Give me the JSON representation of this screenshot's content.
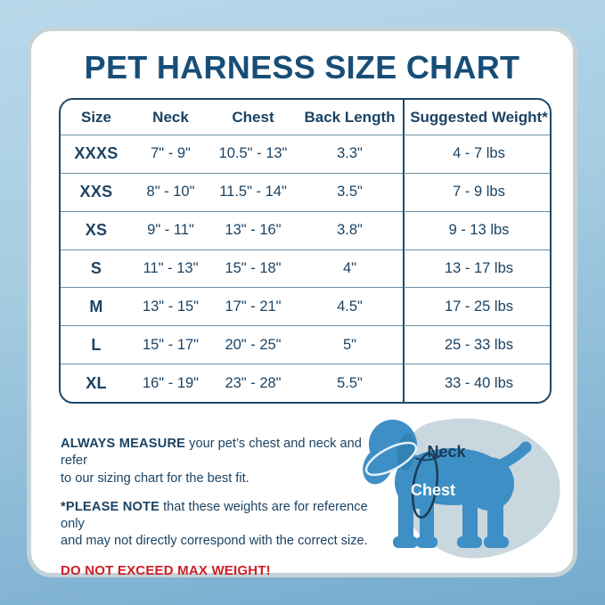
{
  "page": {
    "title": "PET HARNESS SIZE CHART"
  },
  "chart_data": {
    "type": "table",
    "title": "PET HARNESS SIZE CHART",
    "columns": [
      "Size",
      "Neck",
      "Chest",
      "Back Length",
      "Suggested Weight*"
    ],
    "rows": [
      [
        "XXXS",
        "7\" - 9\"",
        "10.5\" - 13\"",
        "3.3\"",
        "4 - 7 lbs"
      ],
      [
        "XXS",
        "8\" - 10\"",
        "11.5\" - 14\"",
        "3.5\"",
        "7 - 9 lbs"
      ],
      [
        "XS",
        "9\" - 11\"",
        "13\" - 16\"",
        "3.8\"",
        "9 - 13 lbs"
      ],
      [
        "S",
        "11\" - 13\"",
        "15\" - 18\"",
        "4\"",
        "13 - 17 lbs"
      ],
      [
        "M",
        "13\" - 15\"",
        "17\" - 21\"",
        "4.5\"",
        "17 - 25 lbs"
      ],
      [
        "L",
        "15\" - 17\"",
        "20\" - 25\"",
        "5\"",
        "25 - 33 lbs"
      ],
      [
        "XL",
        "16\" - 19\"",
        "23\" - 28\"",
        "5.5\"",
        "33 - 40 lbs"
      ]
    ]
  },
  "notes": {
    "measure_bold": "ALWAYS MEASURE",
    "measure_rest": " your pet’s chest and neck and refer\nto our sizing chart for the best fit.",
    "note_bold": "*PLEASE NOTE",
    "note_rest": " that these weights are for reference only\nand may not directly correspond with the correct size.",
    "warning": "DO NOT EXCEED MAX WEIGHT!"
  },
  "diagram": {
    "neck_label": "Neck",
    "chest_label": "Chest"
  },
  "colors": {
    "title_navy": "#174e78",
    "table_navy": "#1b4364",
    "warning_red": "#cb2027",
    "dog_blue": "#3d8fc5",
    "blob_gray_blue": "#c9d7df",
    "background_blue_top": "#b9d9eb",
    "background_blue_bottom": "#74aacd",
    "card_border": "#c6d2d7"
  }
}
